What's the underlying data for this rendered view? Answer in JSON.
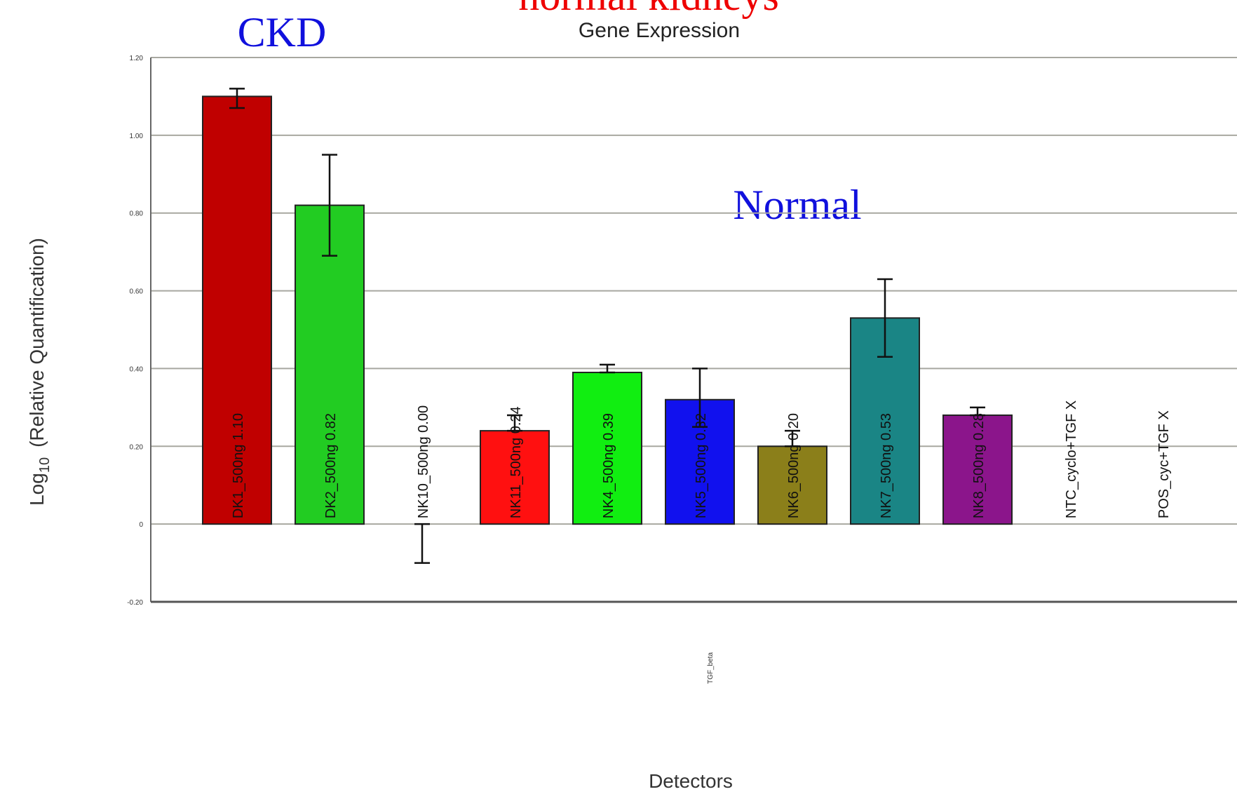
{
  "chart_data": {
    "type": "bar",
    "title": "Gene Expression",
    "overlay_title_partial": "normal kidneys",
    "annotations": {
      "ckd": "CKD",
      "normal": "Normal"
    },
    "xlabel": "Detectors",
    "ylabel": "Log",
    "ylabel_sub": "10",
    "ylabel_suffix": "(Relative Quantification)",
    "x_group_label": "TGF_beta",
    "ylim": [
      -0.2,
      1.2
    ],
    "grid": true,
    "y_ticks": [
      {
        "value": 1.2,
        "label": "1.20"
      },
      {
        "value": 1.0,
        "label": "1.00"
      },
      {
        "value": 0.8,
        "label": "0.80"
      },
      {
        "value": 0.6,
        "label": "0.60"
      },
      {
        "value": 0.4,
        "label": "0.40"
      },
      {
        "value": 0.2,
        "label": "0.20"
      },
      {
        "value": 0.0,
        "label": "0"
      },
      {
        "value": -0.2,
        "label": "-0.20"
      }
    ],
    "bars": [
      {
        "label": "DK1_500ng",
        "value_label": "1.10",
        "value": 1.1,
        "err_low": 1.07,
        "err_high": 1.12,
        "color": "#c00000"
      },
      {
        "label": "DK2_500ng",
        "value_label": "0.82",
        "value": 0.82,
        "err_low": 0.69,
        "err_high": 0.95,
        "color": "#22cc22"
      },
      {
        "label": "NK10_500ng",
        "value_label": "0.00",
        "value": 0.0,
        "err_low": -0.1,
        "err_high": 0.0,
        "color": null
      },
      {
        "label": "NK11_500ng",
        "value_label": "0.24",
        "value": 0.24,
        "err_low": 0.24,
        "err_high": 0.28,
        "color": "#ff1010"
      },
      {
        "label": "NK4_500ng",
        "value_label": "0.39",
        "value": 0.39,
        "err_low": 0.39,
        "err_high": 0.41,
        "color": "#11ee11"
      },
      {
        "label": "NK5_500ng",
        "value_label": "0.32",
        "value": 0.32,
        "err_low": 0.25,
        "err_high": 0.4,
        "color": "#1111ee"
      },
      {
        "label": "NK6_500ng",
        "value_label": "0.20",
        "value": 0.2,
        "err_low": 0.2,
        "err_high": 0.24,
        "color": "#8b7f1a"
      },
      {
        "label": "NK7_500ng",
        "value_label": "0.53",
        "value": 0.53,
        "err_low": 0.43,
        "err_high": 0.63,
        "color": "#1a8585"
      },
      {
        "label": "NK8_500ng",
        "value_label": "0.28",
        "value": 0.28,
        "err_low": 0.28,
        "err_high": 0.3,
        "color": "#8b158b"
      },
      {
        "label": "NTC_cyclo+TGF",
        "value_label": "X",
        "value": null,
        "err_low": null,
        "err_high": null,
        "color": null
      },
      {
        "label": "POS_cyc+TGF",
        "value_label": "X",
        "value": null,
        "err_low": null,
        "err_high": null,
        "color": null
      }
    ]
  }
}
